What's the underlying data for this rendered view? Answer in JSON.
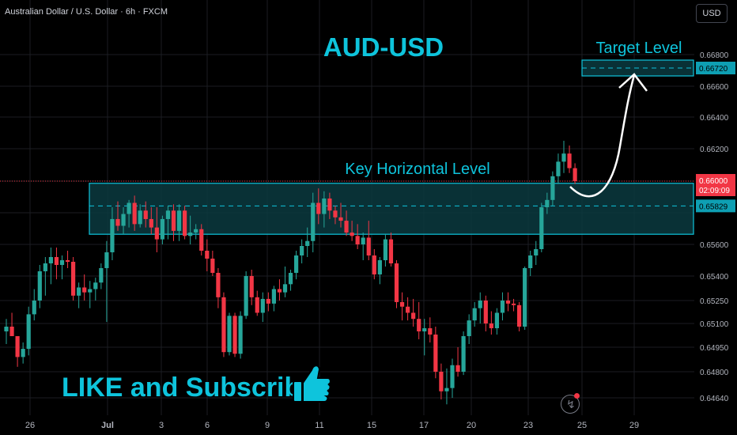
{
  "header": {
    "symbol_line": "Australian Dollar / U.S. Dollar · 6h · FXCM",
    "currency": "USD"
  },
  "annotations": {
    "title": "AUD-USD",
    "key_level_label": "Key Horizontal Level",
    "target_label": "Target Level",
    "subscribe_text": "LIKE and Subscribe"
  },
  "colors": {
    "background": "#000000",
    "up": "#26a69a",
    "down": "#f23645",
    "accent": "#0ec4dc",
    "zone_fill": "#0b3a3f",
    "grid": "#1b1d22"
  },
  "icons": [
    "thumbs-up-icon",
    "lightning-icon"
  ],
  "chart_data": {
    "type": "candlestick",
    "symbol": "Australian Dollar / U.S. Dollar",
    "timeframe": "6h",
    "source": "FXCM",
    "y_ticks": [
      "0.66800",
      "0.66600",
      "0.66400",
      "0.66200",
      "0.65600",
      "0.65400",
      "0.65250",
      "0.65100",
      "0.64950",
      "0.64800",
      "0.64640"
    ],
    "x_ticks": [
      "26",
      "Jul",
      "3",
      "6",
      "9",
      "11",
      "15",
      "17",
      "20",
      "23",
      "25",
      "29"
    ],
    "price_labels": {
      "target": "0.66720",
      "current": "0.66000",
      "countdown": "02:09:09",
      "key_level": "0.65829"
    },
    "key_zone": [
      0.6566,
      0.65985
    ],
    "candles": [
      [
        0.6505,
        0.6513,
        0.6497,
        0.6508
      ],
      [
        0.6508,
        0.6517,
        0.6502,
        0.6502
      ],
      [
        0.6502,
        0.6502,
        0.6483,
        0.6489
      ],
      [
        0.6489,
        0.6498,
        0.6485,
        0.6494
      ],
      [
        0.6494,
        0.6521,
        0.649,
        0.6516
      ],
      [
        0.6516,
        0.6532,
        0.6512,
        0.6525
      ],
      [
        0.6525,
        0.6547,
        0.652,
        0.6543
      ],
      [
        0.6543,
        0.6552,
        0.6528,
        0.6548
      ],
      [
        0.6548,
        0.6558,
        0.6535,
        0.6552
      ],
      [
        0.6552,
        0.6558,
        0.6538,
        0.6547
      ],
      [
        0.6547,
        0.6553,
        0.6538,
        0.655
      ],
      [
        0.655,
        0.6556,
        0.6545,
        0.6549
      ],
      [
        0.6549,
        0.6552,
        0.6525,
        0.6528
      ],
      [
        0.6528,
        0.6536,
        0.652,
        0.6533
      ],
      [
        0.6533,
        0.6541,
        0.6525,
        0.653
      ],
      [
        0.653,
        0.6537,
        0.652,
        0.6532
      ],
      [
        0.6532,
        0.6539,
        0.6525,
        0.6536
      ],
      [
        0.6536,
        0.6548,
        0.6532,
        0.6545
      ],
      [
        0.6545,
        0.6562,
        0.6511,
        0.6555
      ],
      [
        0.6555,
        0.6582,
        0.655,
        0.6575
      ],
      [
        0.6575,
        0.6586,
        0.6568,
        0.6571
      ],
      [
        0.6571,
        0.6582,
        0.6566,
        0.6578
      ],
      [
        0.6578,
        0.6587,
        0.657,
        0.6585
      ],
      [
        0.6585,
        0.659,
        0.6568,
        0.6572
      ],
      [
        0.6572,
        0.6584,
        0.657,
        0.658
      ],
      [
        0.658,
        0.6586,
        0.657,
        0.6575
      ],
      [
        0.6575,
        0.6582,
        0.6566,
        0.657
      ],
      [
        0.657,
        0.6582,
        0.6555,
        0.6563
      ],
      [
        0.6563,
        0.6577,
        0.656,
        0.6575
      ],
      [
        0.6575,
        0.6583,
        0.6563,
        0.658
      ],
      [
        0.658,
        0.6584,
        0.6562,
        0.6568
      ],
      [
        0.6568,
        0.6584,
        0.6562,
        0.658
      ],
      [
        0.658,
        0.6583,
        0.6563,
        0.6565
      ],
      [
        0.6565,
        0.6577,
        0.656,
        0.6567
      ],
      [
        0.6567,
        0.6572,
        0.6563,
        0.6569
      ],
      [
        0.6569,
        0.6572,
        0.6553,
        0.6556
      ],
      [
        0.6556,
        0.6563,
        0.6543,
        0.6551
      ],
      [
        0.6551,
        0.6556,
        0.654,
        0.6542
      ],
      [
        0.6542,
        0.6545,
        0.652,
        0.6527
      ],
      [
        0.6527,
        0.653,
        0.6489,
        0.6492
      ],
      [
        0.6492,
        0.6517,
        0.649,
        0.6515
      ],
      [
        0.6515,
        0.6517,
        0.6489,
        0.6491
      ],
      [
        0.6491,
        0.6518,
        0.6488,
        0.6515
      ],
      [
        0.6515,
        0.6543,
        0.6513,
        0.654
      ],
      [
        0.654,
        0.6544,
        0.6522,
        0.6527
      ],
      [
        0.6527,
        0.6531,
        0.6515,
        0.6517
      ],
      [
        0.6517,
        0.653,
        0.6511,
        0.6526
      ],
      [
        0.6526,
        0.653,
        0.6518,
        0.6523
      ],
      [
        0.6523,
        0.6534,
        0.6518,
        0.6532
      ],
      [
        0.6532,
        0.6538,
        0.6525,
        0.653
      ],
      [
        0.653,
        0.6546,
        0.6527,
        0.6535
      ],
      [
        0.6535,
        0.6544,
        0.6531,
        0.6542
      ],
      [
        0.6542,
        0.6556,
        0.6538,
        0.6553
      ],
      [
        0.6553,
        0.6563,
        0.6548,
        0.6559
      ],
      [
        0.6559,
        0.657,
        0.6552,
        0.6562
      ],
      [
        0.6562,
        0.6592,
        0.6555,
        0.6585
      ],
      [
        0.6585,
        0.6595,
        0.6572,
        0.6578
      ],
      [
        0.6578,
        0.6593,
        0.657,
        0.6588
      ],
      [
        0.6588,
        0.6592,
        0.6575,
        0.658
      ],
      [
        0.658,
        0.6583,
        0.6572,
        0.6576
      ],
      [
        0.6576,
        0.6585,
        0.657,
        0.6574
      ],
      [
        0.6574,
        0.658,
        0.6565,
        0.6567
      ],
      [
        0.6567,
        0.6574,
        0.6562,
        0.6565
      ],
      [
        0.6565,
        0.6572,
        0.6557,
        0.656
      ],
      [
        0.656,
        0.6567,
        0.655,
        0.6564
      ],
      [
        0.6564,
        0.6574,
        0.655,
        0.6553
      ],
      [
        0.6553,
        0.6557,
        0.6538,
        0.6541
      ],
      [
        0.6541,
        0.6552,
        0.6535,
        0.655
      ],
      [
        0.655,
        0.6566,
        0.6546,
        0.6563
      ],
      [
        0.6563,
        0.6567,
        0.6546,
        0.6548
      ],
      [
        0.6548,
        0.655,
        0.652,
        0.6524
      ],
      [
        0.6524,
        0.653,
        0.6512,
        0.6521
      ],
      [
        0.6521,
        0.6527,
        0.6512,
        0.6517
      ],
      [
        0.6517,
        0.6526,
        0.6508,
        0.6513
      ],
      [
        0.6513,
        0.6524,
        0.65,
        0.6505
      ],
      [
        0.6505,
        0.6513,
        0.649,
        0.6507
      ],
      [
        0.6507,
        0.6514,
        0.6498,
        0.6503
      ],
      [
        0.6503,
        0.6508,
        0.6476,
        0.648
      ],
      [
        0.648,
        0.6485,
        0.6463,
        0.6468
      ],
      [
        0.6468,
        0.6482,
        0.646,
        0.647
      ],
      [
        0.647,
        0.6488,
        0.6464,
        0.6484
      ],
      [
        0.6484,
        0.6495,
        0.6477,
        0.648
      ],
      [
        0.648,
        0.6505,
        0.6478,
        0.6502
      ],
      [
        0.6502,
        0.6516,
        0.6497,
        0.6512
      ],
      [
        0.6512,
        0.6524,
        0.6508,
        0.652
      ],
      [
        0.652,
        0.653,
        0.651,
        0.6525
      ],
      [
        0.6525,
        0.6528,
        0.6505,
        0.651
      ],
      [
        0.651,
        0.6518,
        0.6503,
        0.6507
      ],
      [
        0.6507,
        0.652,
        0.6503,
        0.6517
      ],
      [
        0.6517,
        0.653,
        0.6512,
        0.6525
      ],
      [
        0.6525,
        0.653,
        0.6518,
        0.6523
      ],
      [
        0.6523,
        0.6526,
        0.6518,
        0.6522
      ],
      [
        0.6522,
        0.6524,
        0.6505,
        0.6508
      ],
      [
        0.6508,
        0.6546,
        0.6506,
        0.6545
      ],
      [
        0.6545,
        0.6556,
        0.654,
        0.6553
      ],
      [
        0.6553,
        0.6562,
        0.6547,
        0.6557
      ],
      [
        0.6557,
        0.6585,
        0.6555,
        0.6582
      ],
      [
        0.6582,
        0.6592,
        0.6578,
        0.6587
      ],
      [
        0.6587,
        0.6606,
        0.6583,
        0.6603
      ],
      [
        0.6603,
        0.6617,
        0.6598,
        0.6612
      ],
      [
        0.6612,
        0.6625,
        0.6605,
        0.6617
      ],
      [
        0.6617,
        0.6622,
        0.6605,
        0.6608
      ],
      [
        0.6608,
        0.6611,
        0.6598,
        0.66
      ]
    ]
  }
}
